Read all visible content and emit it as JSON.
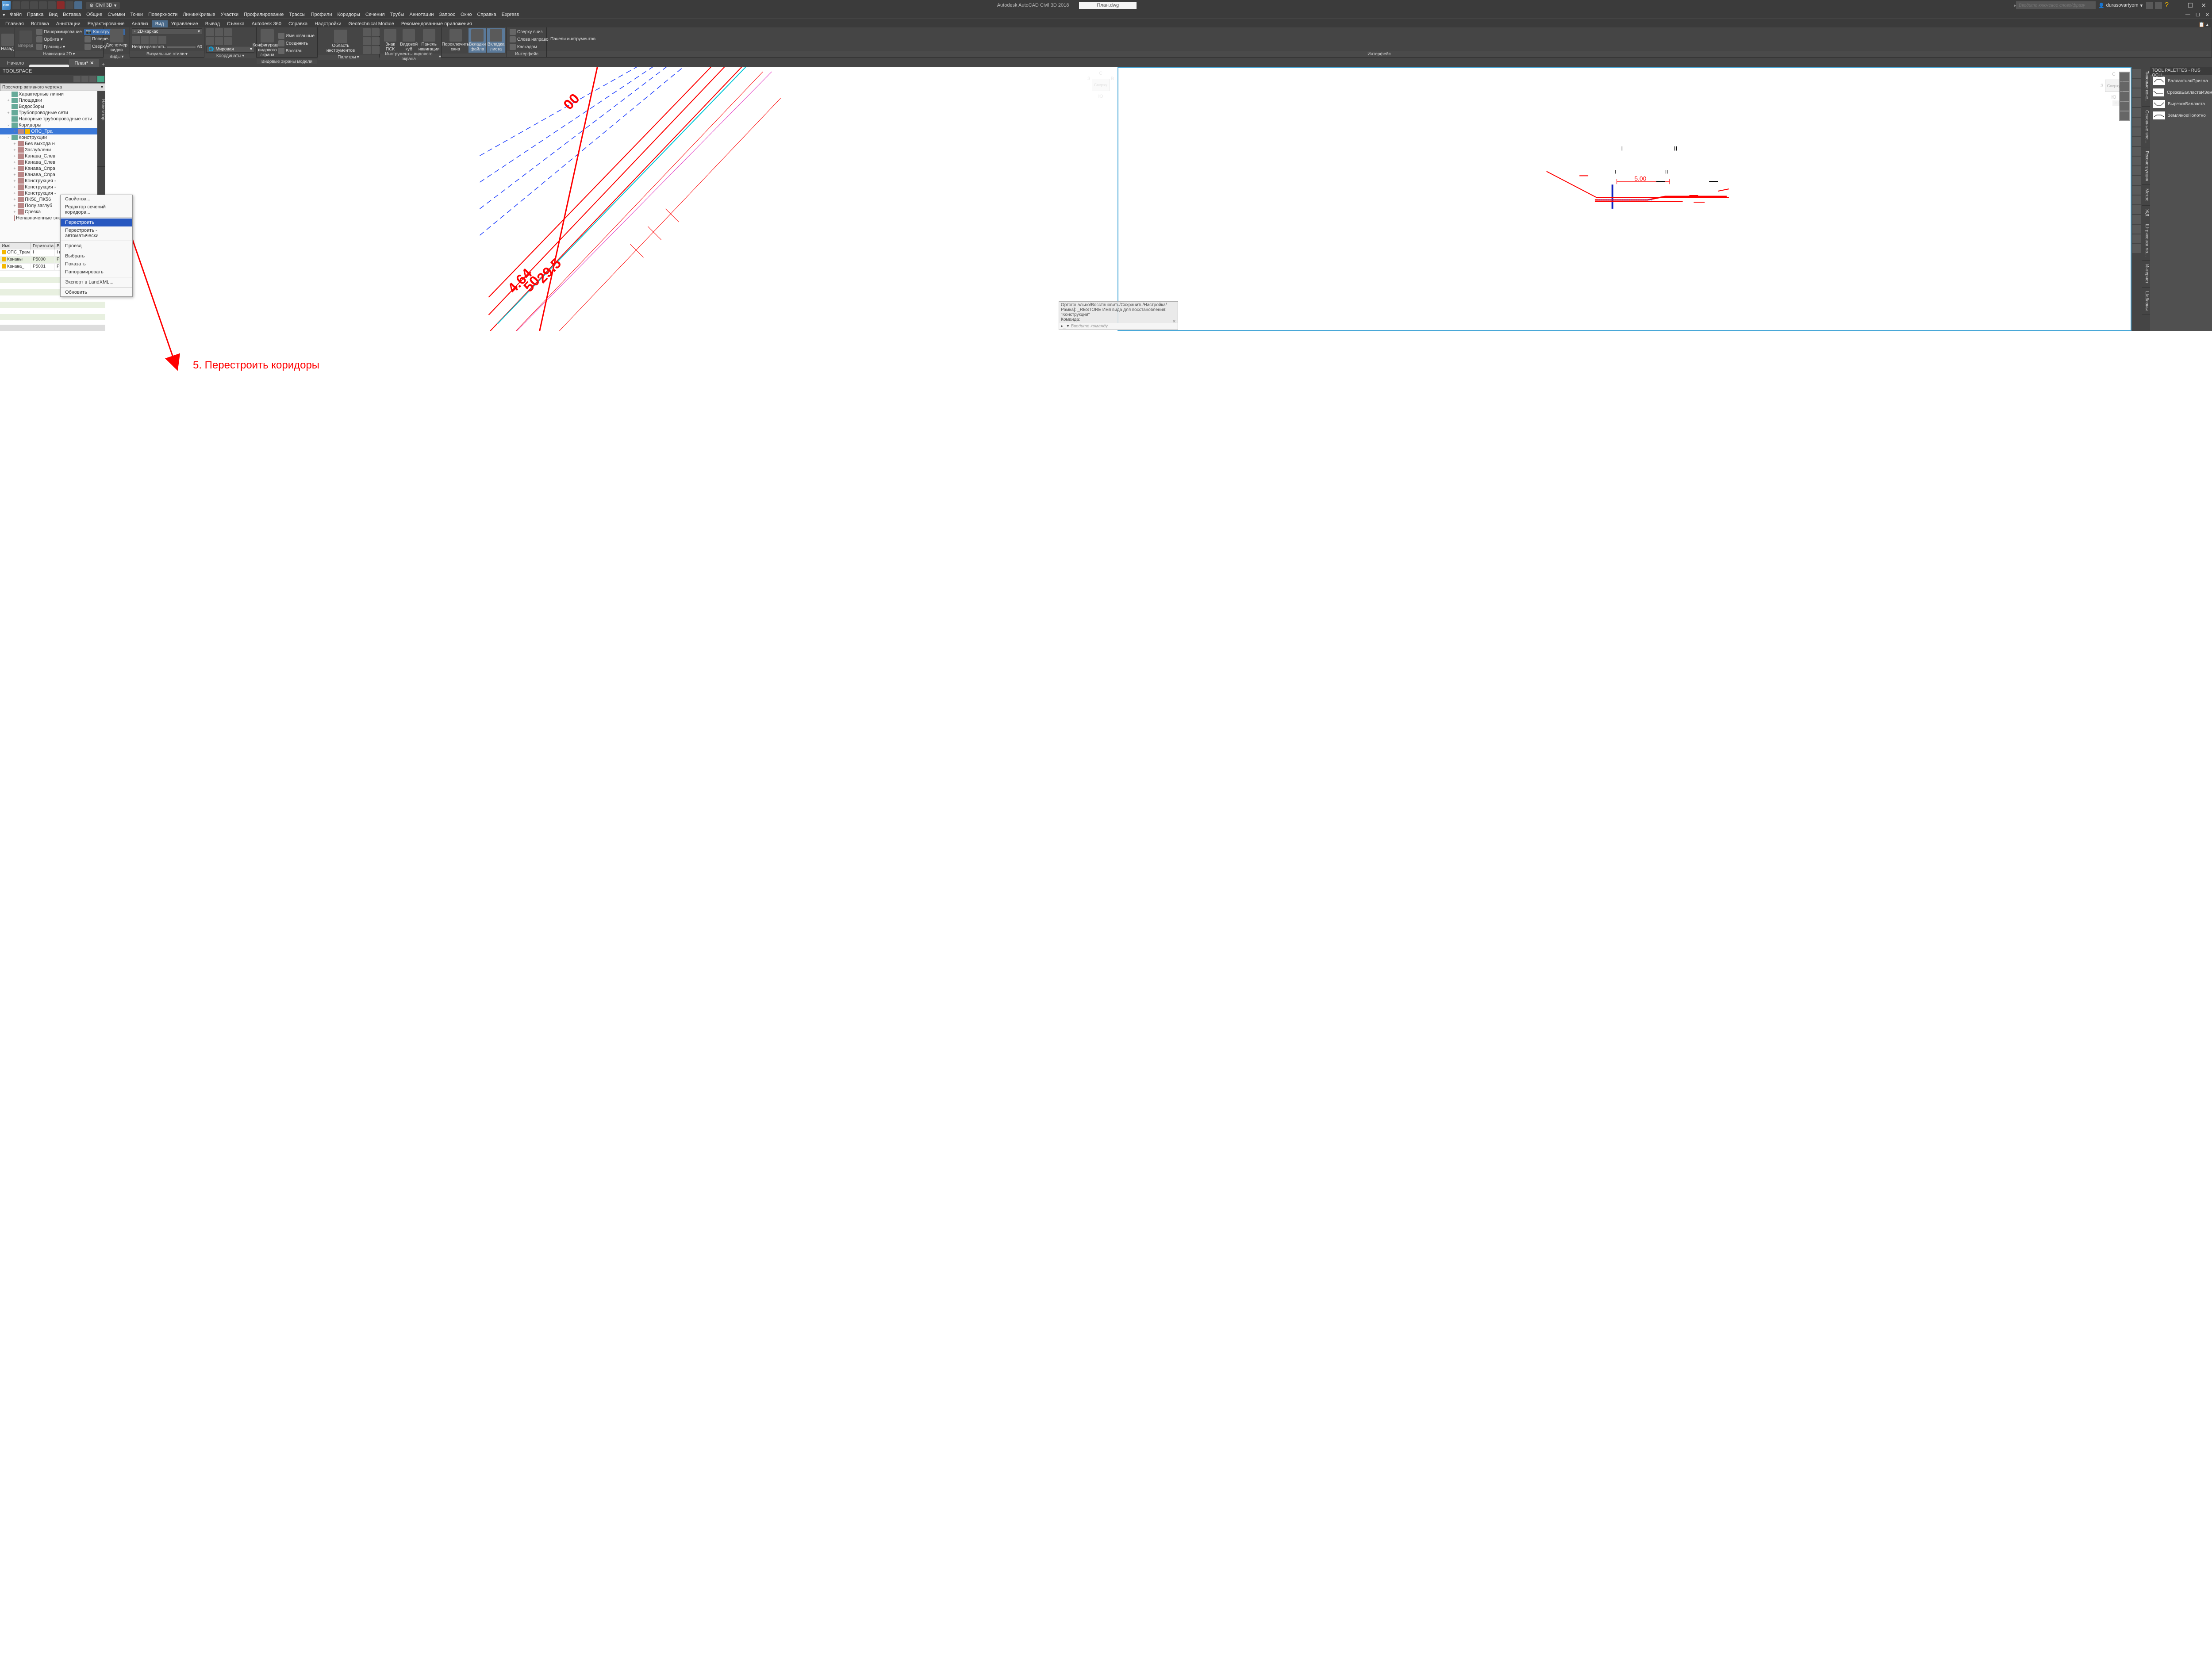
{
  "app": {
    "icon_text": "C3D",
    "workspace": "Civil 3D",
    "title_center": "Autodesk AutoCAD Civil 3D 2018",
    "filename": "План.dwg",
    "search_placeholder": "Введите ключевое слово/фразу",
    "user": "durasovartyom"
  },
  "menus": [
    "Файл",
    "Правка",
    "Вид",
    "Вставка",
    "Общие",
    "Съемки",
    "Точки",
    "Поверхности",
    "Линии/Кривые",
    "Участки",
    "Профилирование",
    "Трассы",
    "Профили",
    "Коридоры",
    "Сечения",
    "Трубы",
    "Аннотации",
    "Запрос",
    "Окно",
    "Справка",
    "Express"
  ],
  "ribbon_tabs": [
    "Главная",
    "Вставка",
    "Аннотации",
    "Редактирование",
    "Анализ",
    "Вид",
    "Управление",
    "Вывод",
    "Съемка",
    "Autodesk 360",
    "Справка",
    "Надстройки",
    "Geotechnical Module",
    "Рекомендованные приложения"
  ],
  "ribbon_active": "Вид",
  "ribbon": {
    "nav2d": {
      "title": "Навигация 2D",
      "back": "Назад",
      "fwd": "Вперед",
      "pan": "Панорамирование",
      "orbit": "Орбита",
      "extents": "Границы",
      "sections_combo": "Конструкции",
      "cross": "Поперечники",
      "top": "Сверху"
    },
    "views": {
      "title": "Виды",
      "mgr": "Диспетчер\nвидов"
    },
    "vstyles": {
      "title": "Визуальные стили",
      "combo": "2D-каркас",
      "trans": "Непрозрачность",
      "val": "60"
    },
    "coords": {
      "title": "Координаты",
      "world": "Мировая"
    },
    "vports": {
      "title": "Видовые экраны модели",
      "cfg": "Конфигурация\nвидового экрана",
      "named": "Именованные",
      "join": "Соединить",
      "restore": "Восстан"
    },
    "palettes": {
      "title": "Палитры",
      "tool": "Область инструментов"
    },
    "vpi": {
      "title": "Инструменты видового экрана",
      "ucs": "Знак\nПСК",
      "vc": "Видовой\nкуб",
      "nav": "Панель\nнавигации"
    },
    "windows": {
      "title": "",
      "switch": "Переключить\nокна",
      "ftabs": "Вкладки\nфайла",
      "ltabs": "Вкладка\nлиста"
    },
    "iface": {
      "title": "Интерфейс",
      "tb": "Сверху вниз",
      "lr": "Слева направо",
      "cascade": "Каскадом",
      "tbars": "Панели инструментов"
    }
  },
  "doctabs": {
    "start": "Начало",
    "blank": " ",
    "active": "План*"
  },
  "toolspace": {
    "title": "TOOLSPACE",
    "combo": "Просмотр активного чертежа",
    "vtabs": [
      "Навигатор",
      " ",
      " ",
      "Панели"
    ],
    "tree": [
      {
        "lvl": 1,
        "exp": "",
        "ico": "1",
        "label": "Характерные линии"
      },
      {
        "lvl": 1,
        "exp": "+",
        "ico": "1",
        "label": "Площадки"
      },
      {
        "lvl": 1,
        "exp": "",
        "ico": "1",
        "label": "Водосборы"
      },
      {
        "lvl": 1,
        "exp": "+",
        "ico": "1",
        "label": "Трубопроводные сети"
      },
      {
        "lvl": 1,
        "exp": "",
        "ico": "1",
        "label": "Напорные трубопроводные сети"
      },
      {
        "lvl": 1,
        "exp": "-",
        "ico": "1",
        "label": "Коридоры"
      },
      {
        "lvl": 2,
        "exp": "+",
        "ico": "1",
        "warn": true,
        "label": "ОПС_Тра",
        "sel": true
      },
      {
        "lvl": 1,
        "exp": "-",
        "ico": "1",
        "label": "Конструкции"
      },
      {
        "lvl": 2,
        "exp": "+",
        "ico": "1",
        "label": "Без выхода н"
      },
      {
        "lvl": 2,
        "exp": "+",
        "ico": "1",
        "label": "Заглублени"
      },
      {
        "lvl": 2,
        "exp": "+",
        "ico": "1",
        "label": "Канава_Слев"
      },
      {
        "lvl": 2,
        "exp": "+",
        "ico": "1",
        "label": "Канава_Слев"
      },
      {
        "lvl": 2,
        "exp": "+",
        "ico": "1",
        "label": "Канава_Спра"
      },
      {
        "lvl": 2,
        "exp": "+",
        "ico": "1",
        "label": "Канава_Спра"
      },
      {
        "lvl": 2,
        "exp": "+",
        "ico": "1",
        "label": "Конструкция -"
      },
      {
        "lvl": 2,
        "exp": "+",
        "ico": "1",
        "label": "Конструкция -"
      },
      {
        "lvl": 2,
        "exp": "+",
        "ico": "1",
        "label": "Конструкция -"
      },
      {
        "lvl": 2,
        "exp": "+",
        "ico": "1",
        "label": "ПК50_ПК56"
      },
      {
        "lvl": 2,
        "exp": "+",
        "ico": "1",
        "label": "Полу заглуб"
      },
      {
        "lvl": 2,
        "exp": "+",
        "ico": "1",
        "label": "Срезка"
      },
      {
        "lvl": 2,
        "exp": "",
        "ico": "1",
        "label": "Неназначенные элементы конструк"
      }
    ]
  },
  "ctxmenu": {
    "items_top": [
      "Свойства...",
      "Редактор сечений коридора..."
    ],
    "item_sel": "Перестроить",
    "item_auto": "Перестроить - автоматически",
    "item_drive": "Проезд",
    "items_mid": [
      "Выбрать",
      "Показать",
      "Панорамировать"
    ],
    "item_export": "Экспорт в LandXML...",
    "item_refresh": "Обновить"
  },
  "grid": {
    "cols": [
      "Имя",
      "Горизонта...",
      "Вертикаль...",
      "Частота"
    ],
    "rows": [
      [
        "ОПС_Трам",
        "I",
        "I проект",
        ""
      ],
      [
        "Канавы",
        "P5000",
        "P5000",
        ""
      ],
      [
        "Канава_",
        "P5001",
        "P5001",
        ""
      ]
    ]
  },
  "cmdline": {
    "l1": "Ортогонально/Восстановить/Сохранить/Настройка/",
    "l2": "Рамка]: _RESTORE Имя вида для восстановления:",
    "l3": "\"Конструкции\"",
    "l4": "Команда:",
    "prompt": "Введите команду"
  },
  "right_palette": {
    "title": "TOOL PALETTES - RUS OCH...",
    "items": [
      "БалластнаяПризма",
      "СрезкаБалластаИЗемПолотна",
      "ВырезкаБалласта",
      "ЗемляноеПолотно"
    ],
    "vtabs": [
      "Типовые конс...",
      "Основные эле...",
      "Реконструкция",
      "Метро",
      "ЖД",
      "Штриховка ма...",
      "Интернет",
      "Шаблоны"
    ]
  },
  "viewcube": {
    "top": "С",
    "left": "З",
    "right": "В",
    "bottom": "Ю",
    "face": "Сверху",
    "wcs": "МСК"
  },
  "drawing": {
    "nums_left": [
      "00",
      "29.5",
      "50",
      "4.64"
    ],
    "dim_right": "5.00",
    "marks": [
      "I",
      "II",
      "I",
      "II"
    ]
  },
  "annotation": {
    "text": "5. Перестроить коридоры"
  }
}
